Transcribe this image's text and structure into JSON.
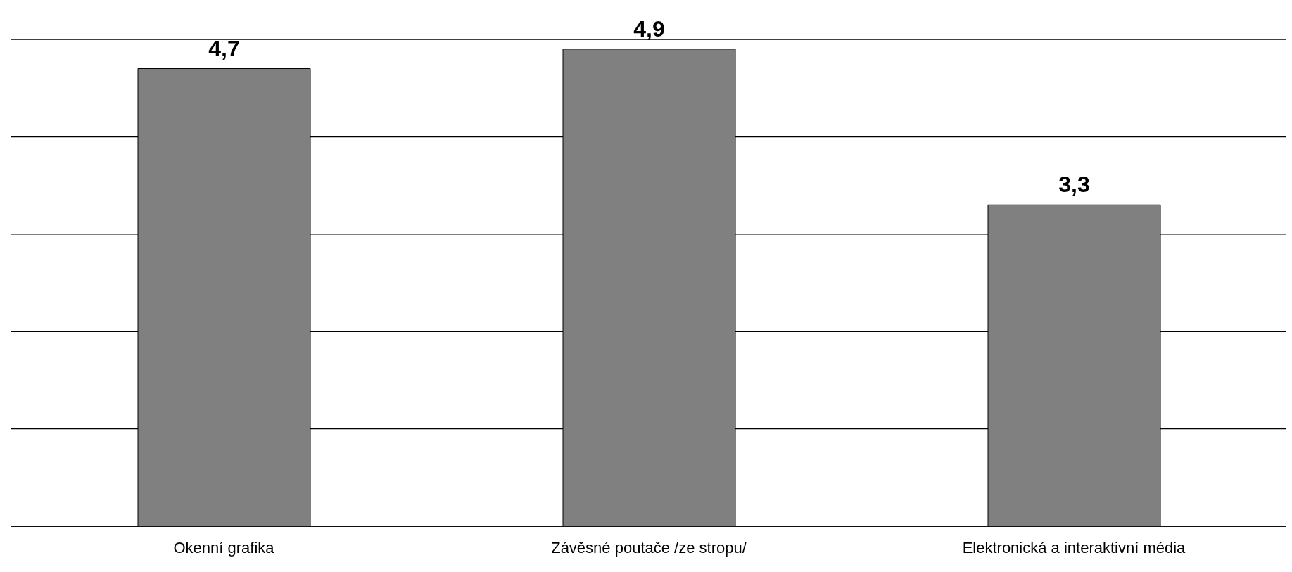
{
  "chart_data": {
    "type": "bar",
    "categories": [
      "Okenní grafika",
      "Závěsné poutače /ze stropu/",
      "Elektronická a interaktivní média"
    ],
    "values": [
      4.7,
      4.9,
      3.3
    ],
    "value_labels": [
      "4,7",
      "4,9",
      "3,3"
    ],
    "color": "#808080",
    "ylim": [
      0,
      5
    ],
    "tick_labels": "x",
    "grid": "y",
    "legend": false
  }
}
